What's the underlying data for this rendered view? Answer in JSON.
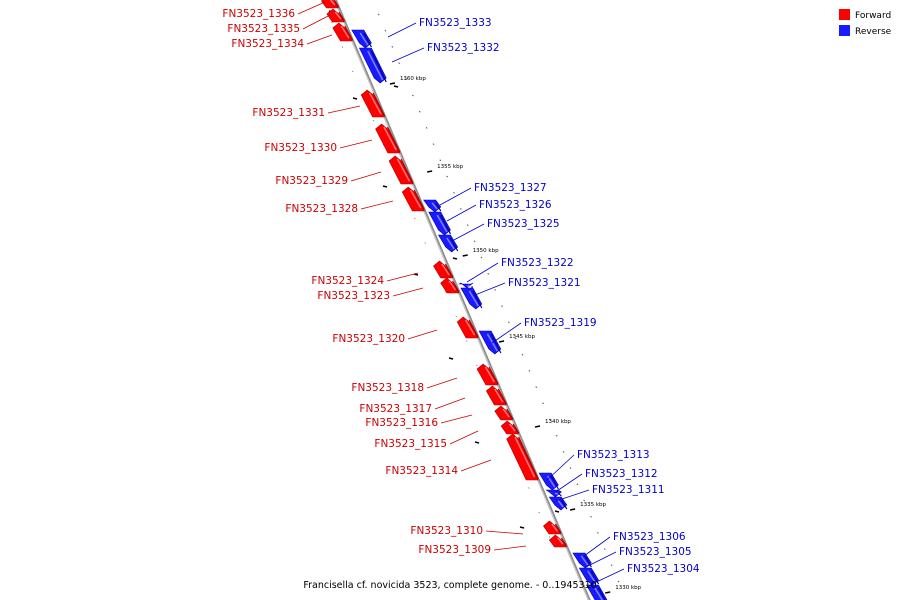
{
  "legend": {
    "forward_label": "Forward",
    "reverse_label": "Reverse",
    "forward_color": "#ff0000",
    "reverse_color": "#1a1aff"
  },
  "caption": "Francisella cf. novicida 3523, complete genome. - 0..1945310",
  "colors": {
    "forward_label": "#cc0000",
    "reverse_label": "#0000cc",
    "backbone": "#8c8c8c"
  },
  "scale_ticks": [
    "1360 kbp",
    "1355 kbp",
    "1350 kbp",
    "1345 kbp",
    "1340 kbp",
    "1335 kbp",
    "1330 kbp"
  ],
  "genes": {
    "forward": [
      {
        "label": "FN3523_1336"
      },
      {
        "label": "FN3523_1335"
      },
      {
        "label": "FN3523_1334"
      },
      {
        "label": "FN3523_1331"
      },
      {
        "label": "FN3523_1330"
      },
      {
        "label": "FN3523_1329"
      },
      {
        "label": "FN3523_1328"
      },
      {
        "label": "FN3523_1324"
      },
      {
        "label": "FN3523_1323"
      },
      {
        "label": "FN3523_1320"
      },
      {
        "label": "FN3523_1318"
      },
      {
        "label": "FN3523_1317"
      },
      {
        "label": "FN3523_1316"
      },
      {
        "label": "FN3523_1315"
      },
      {
        "label": "FN3523_1314"
      },
      {
        "label": "FN3523_1310"
      },
      {
        "label": "FN3523_1309"
      }
    ],
    "reverse": [
      {
        "label": "FN3523_1333"
      },
      {
        "label": "FN3523_1332"
      },
      {
        "label": "FN3523_1327"
      },
      {
        "label": "FN3523_1326"
      },
      {
        "label": "FN3523_1325"
      },
      {
        "label": "FN3523_1322"
      },
      {
        "label": "FN3523_1321"
      },
      {
        "label": "FN3523_1319"
      },
      {
        "label": "FN3523_1313"
      },
      {
        "label": "FN3523_1312"
      },
      {
        "label": "FN3523_1311"
      },
      {
        "label": "FN3523_1306"
      },
      {
        "label": "FN3523_1305"
      },
      {
        "label": "FN3523_1304"
      }
    ]
  }
}
